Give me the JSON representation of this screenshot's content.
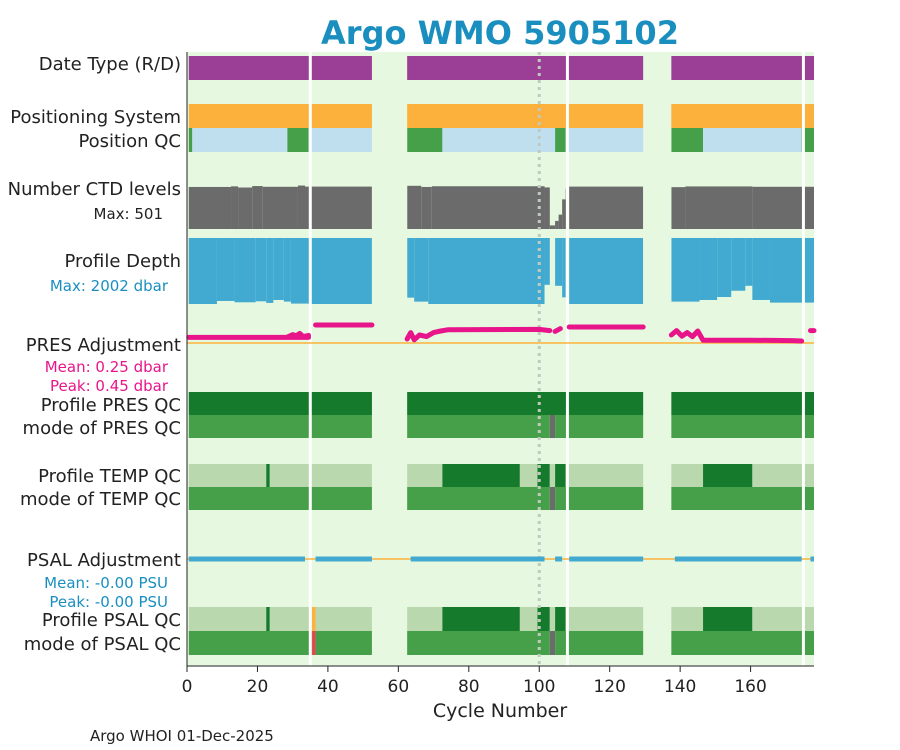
{
  "colors": {
    "background": "#e6f8e0",
    "title": "#1a8fbf",
    "magenta": "#9b3e96",
    "orange": "#fbb13c",
    "lightblue": "#bfdfee",
    "midgreen": "#46a049",
    "darkgreen": "#157a2c",
    "lightgreen": "#bad8ad",
    "gray": "#6b6b6b",
    "blue": "#42aad1",
    "pink": "#e8158a",
    "psalblue": "#42aad1",
    "red": "#e0484e",
    "dotline": "#c0c8c0"
  },
  "chart_data": {
    "type": "table",
    "title": "Argo WMO 5905102",
    "xlabel": "Cycle Number",
    "xlim": [
      0,
      178
    ],
    "xticks": [
      0,
      20,
      40,
      60,
      80,
      100,
      120,
      140,
      160
    ],
    "ref_cycle_dotted": 100,
    "gaps": [
      [
        52.5,
        62.5
      ],
      [
        129.5,
        137.5
      ]
    ],
    "breaks": [
      35,
      108,
      175
    ],
    "row_labels": {
      "date_type": "Date Type (R/D)",
      "positioning": "Positioning System",
      "position_qc": "Position QC",
      "ctd_levels": "Number CTD levels",
      "ctd_max": "Max: 501",
      "profile_depth": "Profile Depth",
      "depth_max": "Max: 2002 dbar",
      "pres_adj": "PRES Adjustment",
      "pres_mean": "Mean: 0.25 dbar",
      "pres_peak": "Peak: 0.45 dbar",
      "profile_pres_qc": "Profile PRES QC",
      "mode_pres_qc": "mode of PRES QC",
      "profile_temp_qc": "Profile TEMP QC",
      "mode_temp_qc": "mode of TEMP QC",
      "psal_adj": "PSAL Adjustment",
      "psal_mean": "Mean: -0.00 PSU",
      "psal_peak": "Peak: -0.00 PSU",
      "profile_psal_qc": "Profile PSAL QC",
      "mode_psal_qc": "mode of PSAL QC"
    },
    "segments": {
      "date_type": [
        {
          "from": 0.5,
          "to": 178,
          "color": "magenta"
        }
      ],
      "positioning": [
        {
          "from": 0.5,
          "to": 178,
          "color": "orange"
        }
      ],
      "position_qc": [
        {
          "from": 0.5,
          "to": 1.5,
          "color": "midgreen"
        },
        {
          "from": 1.5,
          "to": 28.5,
          "color": "lightblue"
        },
        {
          "from": 28.5,
          "to": 34.5,
          "color": "midgreen"
        },
        {
          "from": 34.5,
          "to": 62.5,
          "color": "lightblue"
        },
        {
          "from": 62.5,
          "to": 72.5,
          "color": "midgreen"
        },
        {
          "from": 72.5,
          "to": 104.5,
          "color": "lightblue"
        },
        {
          "from": 104.5,
          "to": 107.5,
          "color": "midgreen"
        },
        {
          "from": 107.5,
          "to": 137.5,
          "color": "lightblue"
        },
        {
          "from": 137.5,
          "to": 146.5,
          "color": "midgreen"
        },
        {
          "from": 146.5,
          "to": 174.5,
          "color": "lightblue"
        },
        {
          "from": 174.5,
          "to": 178,
          "color": "midgreen"
        }
      ],
      "profile_pres_qc": [
        {
          "from": 0.5,
          "to": 178,
          "color": "darkgreen"
        }
      ],
      "mode_pres_qc": [
        {
          "from": 0.5,
          "to": 103,
          "color": "midgreen"
        },
        {
          "from": 103,
          "to": 104.5,
          "color": "gray"
        },
        {
          "from": 104.5,
          "to": 178,
          "color": "midgreen"
        }
      ],
      "profile_temp_qc": [
        {
          "from": 0.5,
          "to": 22.5,
          "color": "lightgreen"
        },
        {
          "from": 22.5,
          "to": 23.5,
          "color": "darkgreen"
        },
        {
          "from": 23.5,
          "to": 72.5,
          "color": "lightgreen"
        },
        {
          "from": 72.5,
          "to": 94.5,
          "color": "darkgreen"
        },
        {
          "from": 94.5,
          "to": 99.5,
          "color": "lightgreen"
        },
        {
          "from": 99.5,
          "to": 103,
          "color": "darkgreen"
        },
        {
          "from": 103,
          "to": 104.5,
          "color": "lightgreen"
        },
        {
          "from": 104.5,
          "to": 107.5,
          "color": "darkgreen"
        },
        {
          "from": 107.5,
          "to": 146.5,
          "color": "lightgreen"
        },
        {
          "from": 146.5,
          "to": 160.5,
          "color": "darkgreen"
        },
        {
          "from": 160.5,
          "to": 178,
          "color": "lightgreen"
        }
      ],
      "mode_temp_qc": [
        {
          "from": 0.5,
          "to": 103,
          "color": "midgreen"
        },
        {
          "from": 103,
          "to": 104.5,
          "color": "gray"
        },
        {
          "from": 104.5,
          "to": 178,
          "color": "midgreen"
        }
      ],
      "profile_psal_qc": [
        {
          "from": 0.5,
          "to": 22.5,
          "color": "lightgreen"
        },
        {
          "from": 22.5,
          "to": 23.5,
          "color": "darkgreen"
        },
        {
          "from": 23.5,
          "to": 35.5,
          "color": "lightgreen"
        },
        {
          "from": 35.5,
          "to": 36.5,
          "color": "orange"
        },
        {
          "from": 36.5,
          "to": 72.5,
          "color": "lightgreen"
        },
        {
          "from": 72.5,
          "to": 94.5,
          "color": "darkgreen"
        },
        {
          "from": 94.5,
          "to": 99.5,
          "color": "lightgreen"
        },
        {
          "from": 99.5,
          "to": 103,
          "color": "darkgreen"
        },
        {
          "from": 103,
          "to": 104.5,
          "color": "lightgreen"
        },
        {
          "from": 104.5,
          "to": 107.5,
          "color": "darkgreen"
        },
        {
          "from": 107.5,
          "to": 146.5,
          "color": "lightgreen"
        },
        {
          "from": 146.5,
          "to": 160.5,
          "color": "darkgreen"
        },
        {
          "from": 160.5,
          "to": 178,
          "color": "lightgreen"
        }
      ],
      "mode_psal_qc": [
        {
          "from": 0.5,
          "to": 35.5,
          "color": "midgreen"
        },
        {
          "from": 35.5,
          "to": 36.5,
          "color": "red"
        },
        {
          "from": 36.5,
          "to": 103,
          "color": "midgreen"
        },
        {
          "from": 103,
          "to": 104.5,
          "color": "gray"
        },
        {
          "from": 104.5,
          "to": 178,
          "color": "midgreen"
        }
      ]
    },
    "ctd_levels_max": 501,
    "ctd_levels": [
      {
        "from": 0.5,
        "to": 12.5,
        "value": 468
      },
      {
        "from": 12.5,
        "to": 14.5,
        "value": 475
      },
      {
        "from": 14.5,
        "to": 18.5,
        "value": 462
      },
      {
        "from": 18.5,
        "to": 21.5,
        "value": 478
      },
      {
        "from": 21.5,
        "to": 31.5,
        "value": 470
      },
      {
        "from": 31.5,
        "to": 33.5,
        "value": 484
      },
      {
        "from": 33.5,
        "to": 52.5,
        "value": 472
      },
      {
        "from": 62.5,
        "to": 66.5,
        "value": 481
      },
      {
        "from": 66.5,
        "to": 69.5,
        "value": 468
      },
      {
        "from": 69.5,
        "to": 101.5,
        "value": 476
      },
      {
        "from": 101.5,
        "to": 103,
        "value": 463
      },
      {
        "from": 103,
        "to": 104.5,
        "value": 40
      },
      {
        "from": 104.5,
        "to": 105.5,
        "value": 90
      },
      {
        "from": 105.5,
        "to": 106.5,
        "value": 160
      },
      {
        "from": 106.5,
        "to": 107.5,
        "value": 330
      },
      {
        "from": 107.5,
        "to": 108,
        "value": 450
      },
      {
        "from": 108.5,
        "to": 129.5,
        "value": 472
      },
      {
        "from": 137.5,
        "to": 141.5,
        "value": 466
      },
      {
        "from": 141.5,
        "to": 160.5,
        "value": 474
      },
      {
        "from": 160.5,
        "to": 178,
        "value": 470
      }
    ],
    "depth_max": 2002,
    "profile_depth": [
      {
        "from": 0.5,
        "to": 8.5,
        "value": 2002
      },
      {
        "from": 8.5,
        "to": 13.5,
        "value": 1910
      },
      {
        "from": 13.5,
        "to": 19.5,
        "value": 1950
      },
      {
        "from": 19.5,
        "to": 22.5,
        "value": 1920
      },
      {
        "from": 22.5,
        "to": 24.5,
        "value": 1970
      },
      {
        "from": 24.5,
        "to": 27.5,
        "value": 1880
      },
      {
        "from": 27.5,
        "to": 29.5,
        "value": 1930
      },
      {
        "from": 29.5,
        "to": 34.5,
        "value": 1990
      },
      {
        "from": 34.5,
        "to": 52.5,
        "value": 2002
      },
      {
        "from": 62.5,
        "to": 64.5,
        "value": 1810
      },
      {
        "from": 64.5,
        "to": 68.5,
        "value": 1930
      },
      {
        "from": 68.5,
        "to": 101.5,
        "value": 2002
      },
      {
        "from": 101.5,
        "to": 103,
        "value": 1420
      },
      {
        "from": 104.5,
        "to": 106.5,
        "value": 1450
      },
      {
        "from": 106.5,
        "to": 107.5,
        "value": 1800
      },
      {
        "from": 108.5,
        "to": 129.5,
        "value": 2002
      },
      {
        "from": 137.5,
        "to": 145.5,
        "value": 1930
      },
      {
        "from": 145.5,
        "to": 150.5,
        "value": 1880
      },
      {
        "from": 150.5,
        "to": 154.5,
        "value": 1790
      },
      {
        "from": 154.5,
        "to": 158.5,
        "value": 1600
      },
      {
        "from": 158.5,
        "to": 160.5,
        "value": 1450
      },
      {
        "from": 160.5,
        "to": 165.5,
        "value": 1880
      },
      {
        "from": 165.5,
        "to": 178,
        "value": 1960
      }
    ],
    "pres_adjustment": [
      {
        "x": [
          0.5,
          34.5
        ],
        "y": [
          0.14,
          0.14
        ]
      },
      {
        "x": [
          28.5,
          30,
          31,
          32,
          33,
          34.5
        ],
        "y": [
          0.15,
          0.21,
          0.18,
          0.24,
          0.16,
          0.19
        ]
      },
      {
        "x": [
          36.5,
          52.5
        ],
        "y": [
          0.45,
          0.45
        ]
      },
      {
        "x": [
          62.5,
          63.5,
          64.5,
          66,
          68,
          70,
          72,
          74,
          100,
          103
        ],
        "y": [
          0.1,
          0.26,
          0.08,
          0.2,
          0.16,
          0.26,
          0.3,
          0.33,
          0.34,
          0.31
        ]
      },
      {
        "x": [
          104.5,
          106
        ],
        "y": [
          0.29,
          0.36
        ]
      },
      {
        "x": [
          108.5,
          129.5
        ],
        "y": [
          0.4,
          0.4
        ]
      },
      {
        "x": [
          137.5,
          139,
          140.5,
          142,
          143.5,
          145,
          146.5,
          160,
          172,
          174.5
        ],
        "y": [
          0.2,
          0.31,
          0.17,
          0.26,
          0.16,
          0.3,
          0.07,
          0.07,
          0.06,
          0.05
        ]
      },
      {
        "x": [
          177,
          178
        ],
        "y": [
          0.31,
          0.31
        ]
      }
    ],
    "psal_adjustment": [
      {
        "from": 0.5,
        "to": 33.5
      },
      {
        "from": 36.5,
        "to": 52.5
      },
      {
        "from": 63.5,
        "to": 101.5
      },
      {
        "from": 104.5,
        "to": 106.5
      },
      {
        "from": 108.5,
        "to": 129.5
      },
      {
        "from": 138.5,
        "to": 174.5
      },
      {
        "from": 177,
        "to": 178
      }
    ]
  }
}
